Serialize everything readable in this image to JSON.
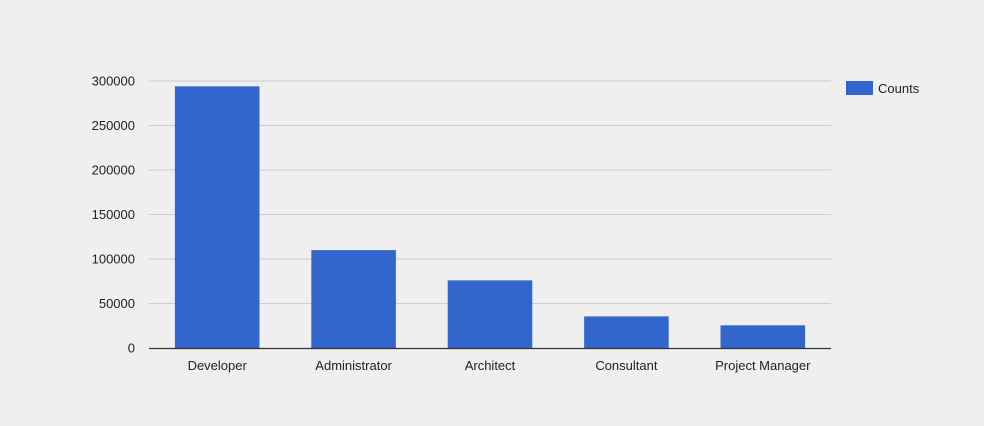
{
  "chart_data": {
    "type": "bar",
    "categories": [
      "Developer",
      "Administrator",
      "Architect",
      "Consultant",
      "Project Manager"
    ],
    "series": [
      {
        "name": "Counts",
        "values": [
          294000,
          110000,
          76000,
          35500,
          25500
        ],
        "color": "#3366cc"
      }
    ],
    "ylim": [
      0,
      300000
    ],
    "yticks": [
      0,
      50000,
      100000,
      150000,
      200000,
      250000,
      300000
    ],
    "ytick_labels": [
      "0",
      "50000",
      "100000",
      "150000",
      "200000",
      "250000",
      "300000"
    ],
    "grid": true,
    "legend_position": "right",
    "title": "",
    "xlabel": "",
    "ylabel": ""
  },
  "colors": {
    "background": "#efefef",
    "gridline": "#cccccc",
    "axis": "#333333",
    "text": "#222222"
  }
}
